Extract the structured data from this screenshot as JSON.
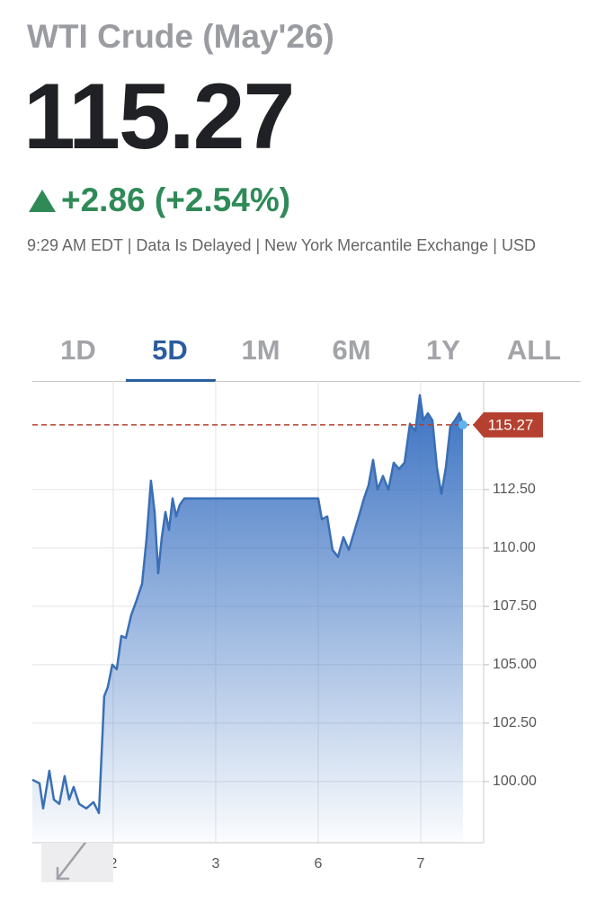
{
  "header": {
    "title": "WTI Crude (May'26)",
    "price": "115.27",
    "change": "+2.86 (+2.54%)",
    "note": "9:29 AM EDT | Data Is Delayed | New York Mercantile Exchange | USD"
  },
  "tabs": [
    {
      "label": "1D",
      "selected": false
    },
    {
      "label": "5D",
      "selected": true
    },
    {
      "label": "1M",
      "selected": false
    },
    {
      "label": "6M",
      "selected": false
    },
    {
      "label": "1Y",
      "selected": false
    },
    {
      "label": "ALL",
      "selected": false
    }
  ],
  "chart_data": {
    "type": "area",
    "color": "#3a6fb5",
    "x": [
      0.211,
      0.281,
      0.316,
      0.377,
      0.421,
      0.474,
      0.526,
      0.57,
      0.614,
      0.667,
      0.737,
      0.807,
      0.86,
      0.886,
      0.912,
      0.947,
      0.991,
      1.035,
      1.079,
      1.123,
      1.175,
      1.228,
      1.281,
      1.325,
      1.368,
      1.404,
      1.439,
      1.474,
      1.509,
      1.544,
      1.579,
      1.614,
      1.649,
      1.693,
      3.0,
      3.035,
      3.088,
      3.14,
      3.193,
      3.246,
      3.298,
      3.351,
      3.404,
      3.447,
      3.491,
      3.535,
      3.579,
      3.632,
      3.684,
      3.737,
      3.789,
      3.842,
      3.895,
      3.947,
      3.991,
      4.026,
      4.07,
      4.114,
      4.158,
      4.202,
      4.246,
      4.289,
      4.333,
      4.377,
      4.412
    ],
    "values": [
      100.08,
      99.92,
      98.85,
      100.46,
      99.23,
      99.04,
      100.23,
      99.23,
      99.77,
      99.04,
      98.85,
      99.12,
      98.65,
      101.15,
      103.65,
      104.04,
      105.0,
      104.81,
      106.23,
      106.15,
      107.12,
      107.77,
      108.46,
      110.38,
      112.88,
      111.54,
      108.92,
      110.46,
      111.54,
      110.77,
      112.12,
      111.35,
      111.85,
      112.12,
      112.12,
      111.23,
      111.35,
      109.92,
      109.62,
      110.46,
      109.92,
      110.69,
      111.46,
      112.12,
      112.69,
      113.77,
      112.5,
      113.08,
      112.5,
      113.65,
      113.38,
      113.65,
      115.31,
      115.0,
      116.54,
      115.46,
      115.77,
      115.46,
      113.46,
      112.31,
      113.46,
      115.19,
      115.46,
      115.77,
      115.27
    ],
    "xlim": [
      0.211,
      4.614
    ],
    "xticks": [
      {
        "value": 1,
        "label": "2"
      },
      {
        "value": 2,
        "label": "3"
      },
      {
        "value": 3,
        "label": "6"
      },
      {
        "value": 4,
        "label": "7"
      }
    ],
    "ylim": [
      97.38,
      117.15
    ],
    "yticks": [
      {
        "value": 100,
        "label": "100.00"
      },
      {
        "value": 102.5,
        "label": "102.50"
      },
      {
        "value": 105,
        "label": "105.00"
      },
      {
        "value": 107.5,
        "label": "107.50"
      },
      {
        "value": 110,
        "label": "110.00"
      },
      {
        "value": 112.5,
        "label": "112.50"
      }
    ],
    "grid": true,
    "annotations": [
      {
        "value": 115.27,
        "label": "115.27",
        "color": "#b5402f"
      }
    ]
  }
}
